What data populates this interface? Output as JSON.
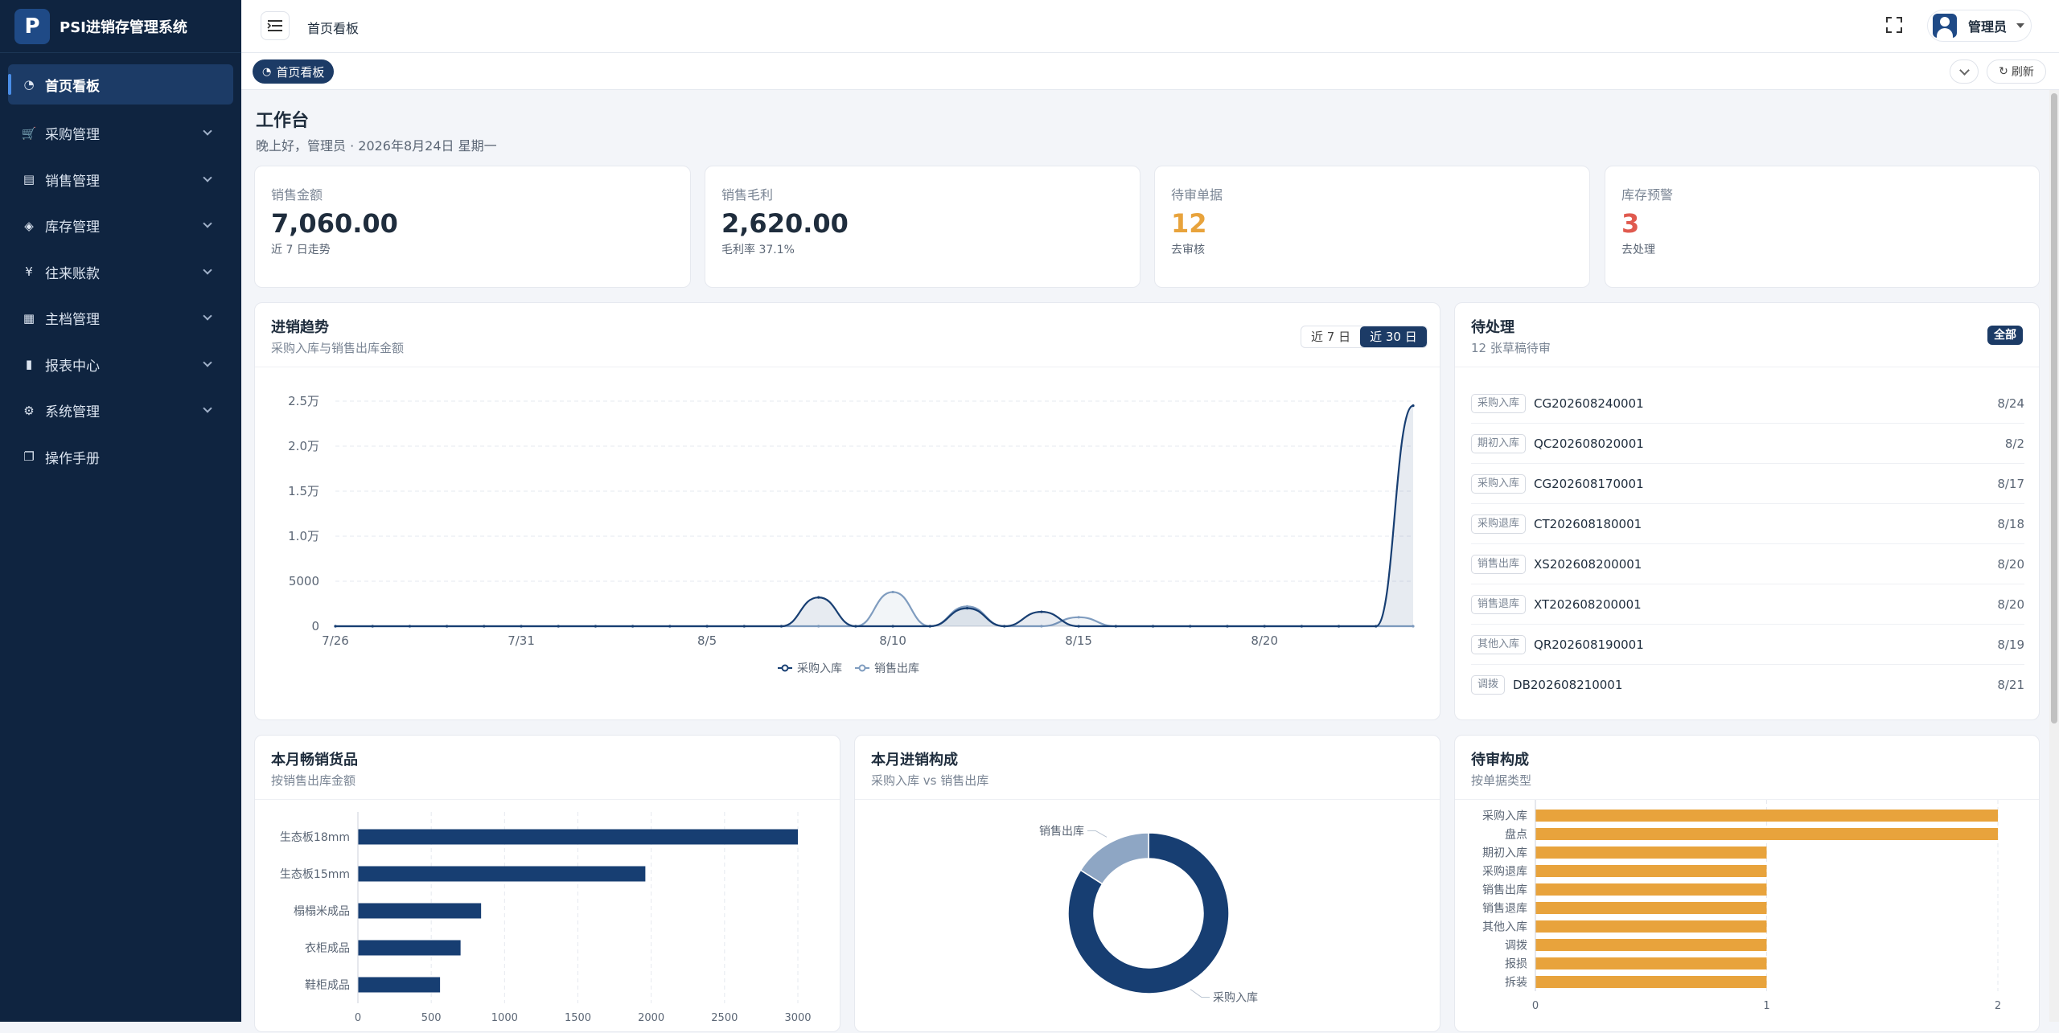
{
  "app": {
    "title": "PSI进销存管理系统",
    "logo_letter": "P"
  },
  "sidebar": {
    "items": [
      {
        "label": "首页看板",
        "icon": "dashboard-icon",
        "active": true
      },
      {
        "label": "采购管理",
        "icon": "cart-icon"
      },
      {
        "label": "销售管理",
        "icon": "documents-icon"
      },
      {
        "label": "库存管理",
        "icon": "layers-icon"
      },
      {
        "label": "往来账款",
        "icon": "yen-icon"
      },
      {
        "label": "主档管理",
        "icon": "database-icon"
      },
      {
        "label": "报表中心",
        "icon": "bar-chart-icon"
      },
      {
        "label": "系统管理",
        "icon": "gear-icon"
      },
      {
        "label": "操作手册",
        "icon": "book-icon"
      }
    ]
  },
  "header": {
    "breadcrumb": "首页看板",
    "user": "管理员"
  },
  "tabs": {
    "active": "首页看板",
    "refresh": "刷新"
  },
  "workbench": {
    "title": "工作台",
    "greeting": "晚上好，管理员 · 2026年8月24日 星期一"
  },
  "stats": [
    {
      "label": "销售金额",
      "value": "7,060.00",
      "sub": "近 7 日走势",
      "color": "#1f2d3d"
    },
    {
      "label": "销售毛利",
      "value": "2,620.00",
      "sub": "毛利率 37.1%",
      "color": "#1f2d3d"
    },
    {
      "label": "待审单据",
      "value": "12",
      "sub": "去审核",
      "color": "#e8a33c"
    },
    {
      "label": "库存预警",
      "value": "3",
      "sub": "去处理",
      "color": "#e05a4f"
    }
  ],
  "trend": {
    "title": "进销趋势",
    "subtitle": "采购入库与销售出库金额",
    "range_7": "近 7 日",
    "range_30": "近 30 日"
  },
  "todo": {
    "title": "待处理",
    "subtitle": "12 张草稿待审",
    "all": "全部",
    "items": [
      {
        "tag": "采购入库",
        "no": "CG202608240001",
        "date": "8/24"
      },
      {
        "tag": "期初入库",
        "no": "QC202608020001",
        "date": "8/2"
      },
      {
        "tag": "采购入库",
        "no": "CG202608170001",
        "date": "8/17"
      },
      {
        "tag": "采购退库",
        "no": "CT202608180001",
        "date": "8/18"
      },
      {
        "tag": "销售出库",
        "no": "XS202608200001",
        "date": "8/20"
      },
      {
        "tag": "销售退库",
        "no": "XT202608200001",
        "date": "8/20"
      },
      {
        "tag": "其他入库",
        "no": "QR202608190001",
        "date": "8/19"
      },
      {
        "tag": "调拨",
        "no": "DB202608210001",
        "date": "8/21"
      }
    ]
  },
  "topsell": {
    "title": "本月畅销货品",
    "subtitle": "按销售出库金额"
  },
  "composition": {
    "title": "本月进销构成",
    "subtitle": "采购入库 vs 销售出库"
  },
  "pending": {
    "title": "待审构成",
    "subtitle": "按单据类型"
  },
  "chart_data": [
    {
      "type": "area",
      "title": "进销趋势",
      "x": [
        "7/26",
        "7/27",
        "7/28",
        "7/29",
        "7/30",
        "7/31",
        "8/1",
        "8/2",
        "8/3",
        "8/4",
        "8/5",
        "8/6",
        "8/7",
        "8/8",
        "8/9",
        "8/10",
        "8/11",
        "8/12",
        "8/13",
        "8/14",
        "8/15",
        "8/16",
        "8/17",
        "8/18",
        "8/19",
        "8/20",
        "8/21",
        "8/22",
        "8/23",
        "8/24"
      ],
      "tick_labels": [
        "7/26",
        "7/31",
        "8/5",
        "8/10",
        "8/15",
        "8/20"
      ],
      "y_ticks": [
        "0",
        "5000",
        "1.0万",
        "1.5万",
        "2.0万",
        "2.5万"
      ],
      "ylim": [
        0,
        25000
      ],
      "series": [
        {
          "name": "采购入库",
          "color": "#173e72",
          "values": [
            0,
            0,
            0,
            0,
            0,
            0,
            0,
            0,
            0,
            0,
            0,
            0,
            0,
            3200,
            0,
            0,
            0,
            2000,
            0,
            1600,
            0,
            0,
            0,
            0,
            0,
            0,
            0,
            0,
            0,
            24500
          ]
        },
        {
          "name": "销售出库",
          "color": "#7f9cbf",
          "values": [
            0,
            0,
            0,
            0,
            0,
            0,
            0,
            0,
            0,
            0,
            0,
            0,
            0,
            0,
            0,
            3800,
            0,
            2200,
            0,
            0,
            1000,
            0,
            0,
            0,
            0,
            0,
            0,
            0,
            0,
            0
          ]
        }
      ],
      "legend": "bottom-center"
    },
    {
      "type": "bar",
      "title": "本月畅销货品",
      "orientation": "horizontal",
      "categories": [
        "生态板18mm",
        "生态板15mm",
        "榻榻米成品",
        "衣柜成品",
        "鞋柜成品"
      ],
      "values": [
        3000,
        1960,
        840,
        700,
        560
      ],
      "x_ticks": [
        "0",
        "500",
        "1000",
        "1500",
        "2000",
        "2500",
        "3000"
      ],
      "xlim": [
        0,
        3000
      ],
      "color": "#173e72"
    },
    {
      "type": "pie",
      "title": "本月进销构成",
      "hole": 0.68,
      "categories": [
        "采购入库",
        "销售出库"
      ],
      "values": [
        84,
        16
      ],
      "colors": [
        "#173e72",
        "#8ea6c4"
      ]
    },
    {
      "type": "bar",
      "title": "待审构成",
      "orientation": "horizontal",
      "categories": [
        "采购入库",
        "盘点",
        "期初入库",
        "采购退库",
        "销售出库",
        "销售退库",
        "其他入库",
        "调拨",
        "报损",
        "拆装"
      ],
      "values": [
        2,
        2,
        1,
        1,
        1,
        1,
        1,
        1,
        1,
        1
      ],
      "x_ticks": [
        "0",
        "1",
        "2"
      ],
      "xlim": [
        0,
        2
      ],
      "color": "#e8a33c"
    }
  ]
}
